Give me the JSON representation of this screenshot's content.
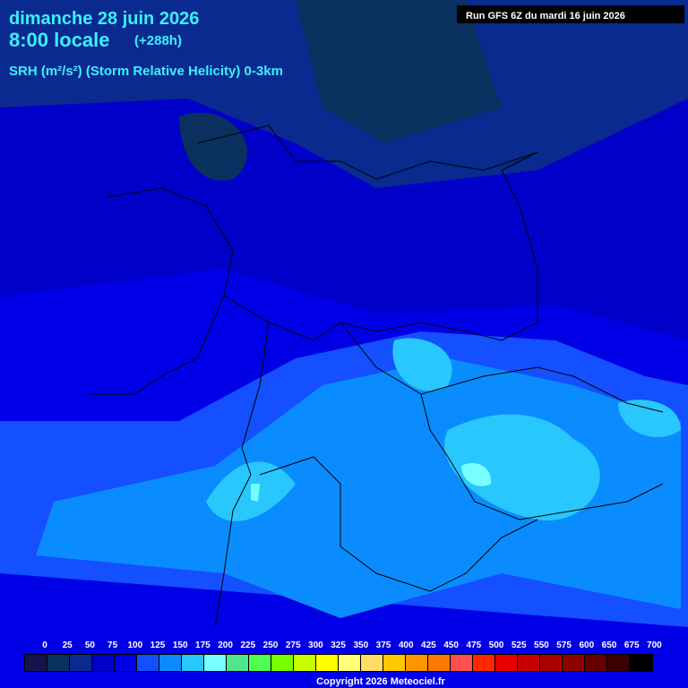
{
  "header": {
    "date": "dimanche 28 juin 2026",
    "time": "8:00 locale",
    "lead": "(+288h)",
    "parameter": "SRH (m²/s²) (Storm Relative Helicity) 0-3km",
    "run": "Run GFS 6Z du mardi 16 juin 2026"
  },
  "legend": {
    "ticks": [
      0,
      25,
      50,
      75,
      100,
      125,
      150,
      175,
      200,
      225,
      250,
      275,
      300,
      325,
      350,
      375,
      400,
      425,
      450,
      475,
      500,
      525,
      550,
      575,
      600,
      650,
      675,
      700
    ],
    "colors": [
      "#14144a",
      "#0a3060",
      "#0a2a90",
      "#0000c8",
      "#0000e6",
      "#1450ff",
      "#0a8cff",
      "#28c8ff",
      "#78ffff",
      "#50e68c",
      "#50ff50",
      "#78ff00",
      "#c8ff00",
      "#ffff00",
      "#ffff78",
      "#ffdc64",
      "#ffc800",
      "#ff9600",
      "#ff7800",
      "#ff5050",
      "#ff2800",
      "#e60000",
      "#c80000",
      "#aa0000",
      "#8c0000",
      "#640000",
      "#3c0000",
      "#000000"
    ]
  },
  "footer": {
    "copyright": "Copyright 2026 Meteociel.fr"
  }
}
